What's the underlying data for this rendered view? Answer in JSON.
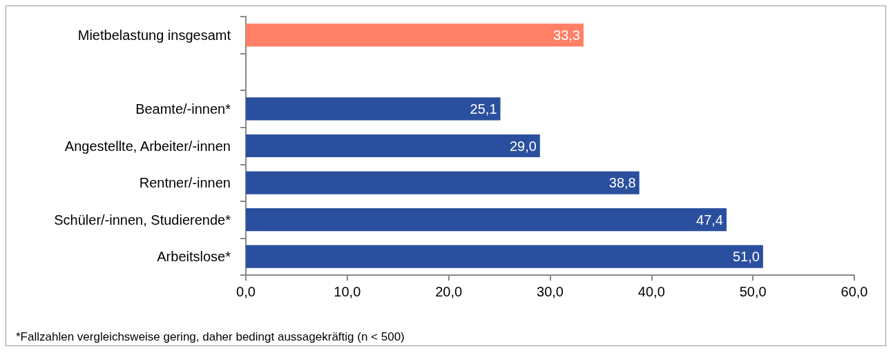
{
  "chart_data": {
    "type": "bar",
    "orientation": "horizontal",
    "categories": [
      "Mietbelastung insgesamt",
      null,
      "Beamte/-innen*",
      "Angestellte, Arbeiter/-innen",
      "Rentner/-innen",
      "Schüler/-innen, Studierende*",
      "Arbeitslose*"
    ],
    "values": [
      33.3,
      null,
      25.1,
      29.0,
      38.8,
      47.4,
      51.0
    ],
    "value_labels": [
      "33,3",
      null,
      "25,1",
      "29,0",
      "38,8",
      "47,4",
      "51,0"
    ],
    "colors": [
      "#ff8066",
      "#2a4f9e",
      "#2a4f9e",
      "#2a4f9e",
      "#2a4f9e",
      "#2a4f9e",
      "#2a4f9e"
    ],
    "xlim": [
      0,
      60
    ],
    "xticks": [
      {
        "value": 0,
        "label": "0,0"
      },
      {
        "value": 10,
        "label": "10,0"
      },
      {
        "value": 20,
        "label": "20,0"
      },
      {
        "value": 30,
        "label": "30,0"
      },
      {
        "value": 40,
        "label": "40,0"
      },
      {
        "value": 50,
        "label": "50,0"
      },
      {
        "value": 60,
        "label": "60,0"
      }
    ],
    "grid": false,
    "annotations": [
      "*Fallzahlen vergleichsweise gering, daher bedingt aussagekräftig (n < 500)"
    ]
  }
}
